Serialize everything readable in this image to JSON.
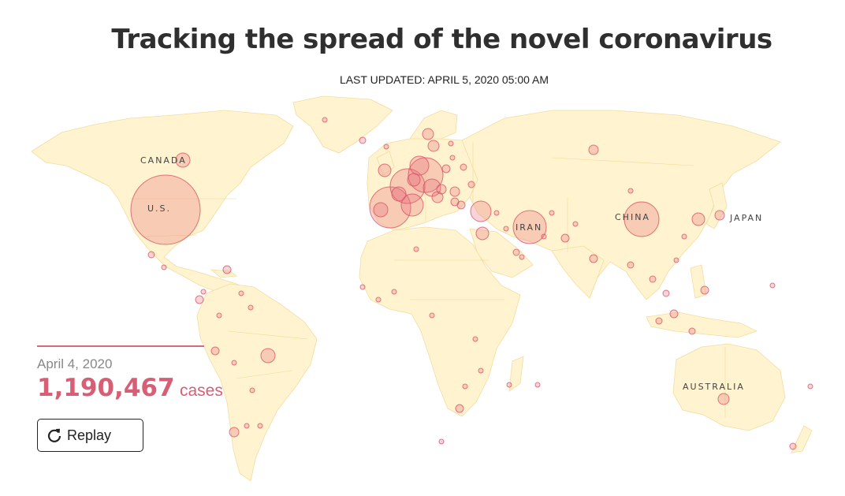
{
  "header": {
    "title": "Tracking the spread of the novel coronavirus",
    "updated": "LAST UPDATED: APRIL 5, 2020 05:00 AM"
  },
  "map": {
    "labels": {
      "canada": "CANADA",
      "us": "U.S.",
      "china": "CHINA",
      "iran": "IRAN",
      "japan": "JAPAN",
      "australia": "AUSTRALIA"
    },
    "colors": {
      "land": "#fff4cf",
      "bubble": "#e76c7c"
    }
  },
  "panel": {
    "date": "April 4, 2020",
    "count": "1,190,467",
    "count_unit": "cases"
  },
  "controls": {
    "replay_label": "Replay",
    "replay_icon": "replay-icon"
  }
}
